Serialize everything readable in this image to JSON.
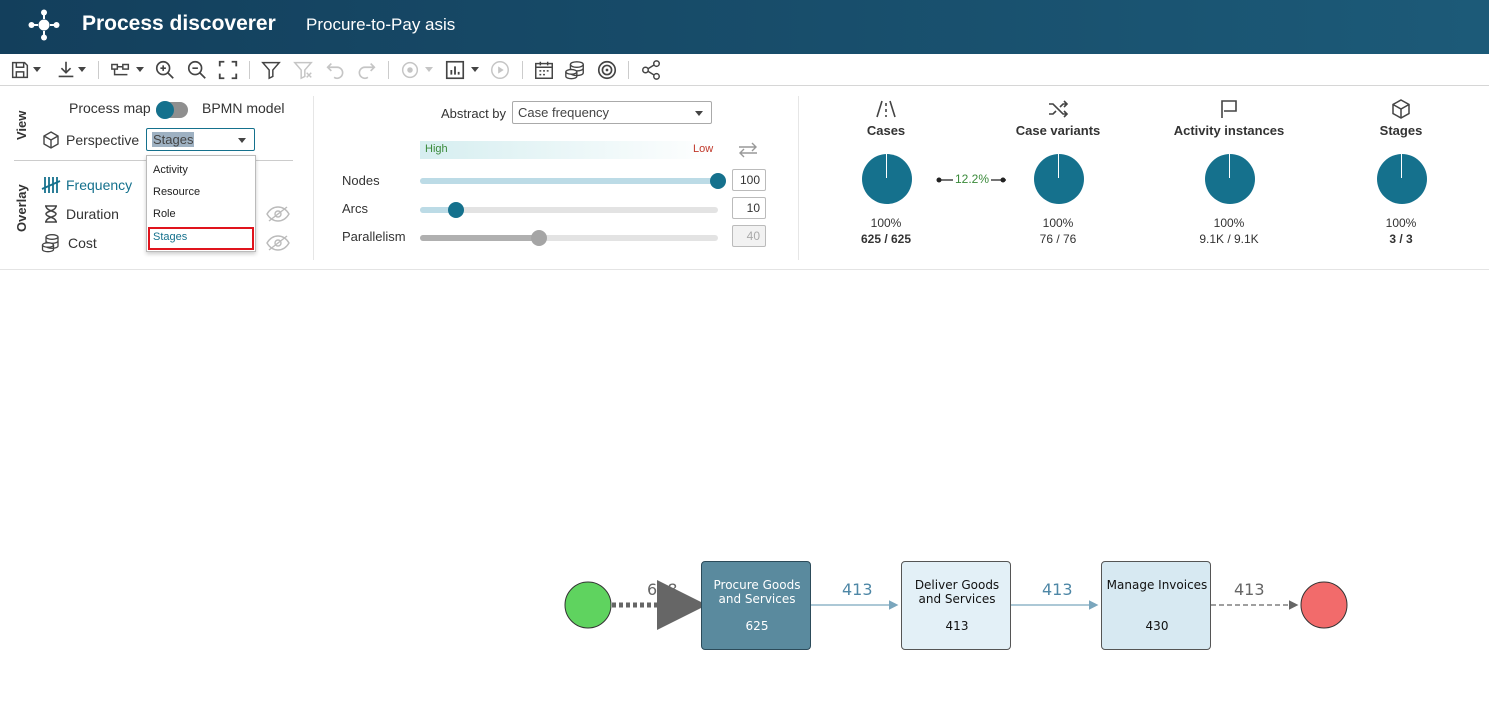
{
  "header": {
    "app_title": "Process discoverer",
    "doc_title": "Procure-to-Pay asis"
  },
  "toolbar": {
    "icons": [
      "save-icon",
      "download-icon",
      "layout-icon",
      "zoom-in-icon",
      "zoom-out-icon",
      "fit-screen-icon",
      "filter-icon",
      "clear-filter-icon",
      "undo-icon",
      "redo-icon",
      "animation-icon",
      "chart-icon",
      "play-icon",
      "calendar-icon",
      "cost-icon",
      "target-icon",
      "share-icon"
    ]
  },
  "view": {
    "section_label": "View",
    "process_map_label": "Process map",
    "bpmn_label": "BPMN model",
    "perspective_label": "Perspective",
    "perspective_value": "Stages",
    "perspective_options": [
      "Activity",
      "Resource",
      "Role",
      "Stages"
    ]
  },
  "overlay": {
    "section_label": "Overlay",
    "frequency_label": "Frequency",
    "duration_label": "Duration",
    "cost_label": "Cost"
  },
  "abstraction": {
    "abstract_by_label": "Abstract by",
    "abstract_by_value": "Case frequency",
    "high_label": "High",
    "low_label": "Low",
    "nodes_label": "Nodes",
    "nodes_value": "100",
    "nodes_level": 1.0,
    "arcs_label": "Arcs",
    "arcs_value": "10",
    "arcs_level": 0.12,
    "parallelism_label": "Parallelism",
    "parallelism_value": "40",
    "parallelism_level": 0.4
  },
  "stats": {
    "cases": {
      "title": "Cases",
      "pct": "100%",
      "value": "625 / 625"
    },
    "variants_ratio": "12.2%",
    "case_variants": {
      "title": "Case variants",
      "pct": "100%",
      "value": "76 / 76"
    },
    "activity_instances": {
      "title": "Activity instances",
      "pct": "100%",
      "value": "9.1K / 9.1K"
    },
    "stages": {
      "title": "Stages",
      "pct": "100%",
      "value": "3 / 3"
    }
  },
  "process_map": {
    "nodes": [
      {
        "name": "Procure Goods and Services",
        "count": "625"
      },
      {
        "name": "Deliver Goods and Services",
        "count": "413"
      },
      {
        "name": "Manage Invoices",
        "count": "430"
      }
    ],
    "edges": [
      "608",
      "413",
      "413",
      "413"
    ]
  },
  "colors": {
    "header": "#1c5a78",
    "accent": "#15718d",
    "start": "#5fd35f",
    "end": "#f26b6b",
    "highlight": "#e0141d"
  }
}
